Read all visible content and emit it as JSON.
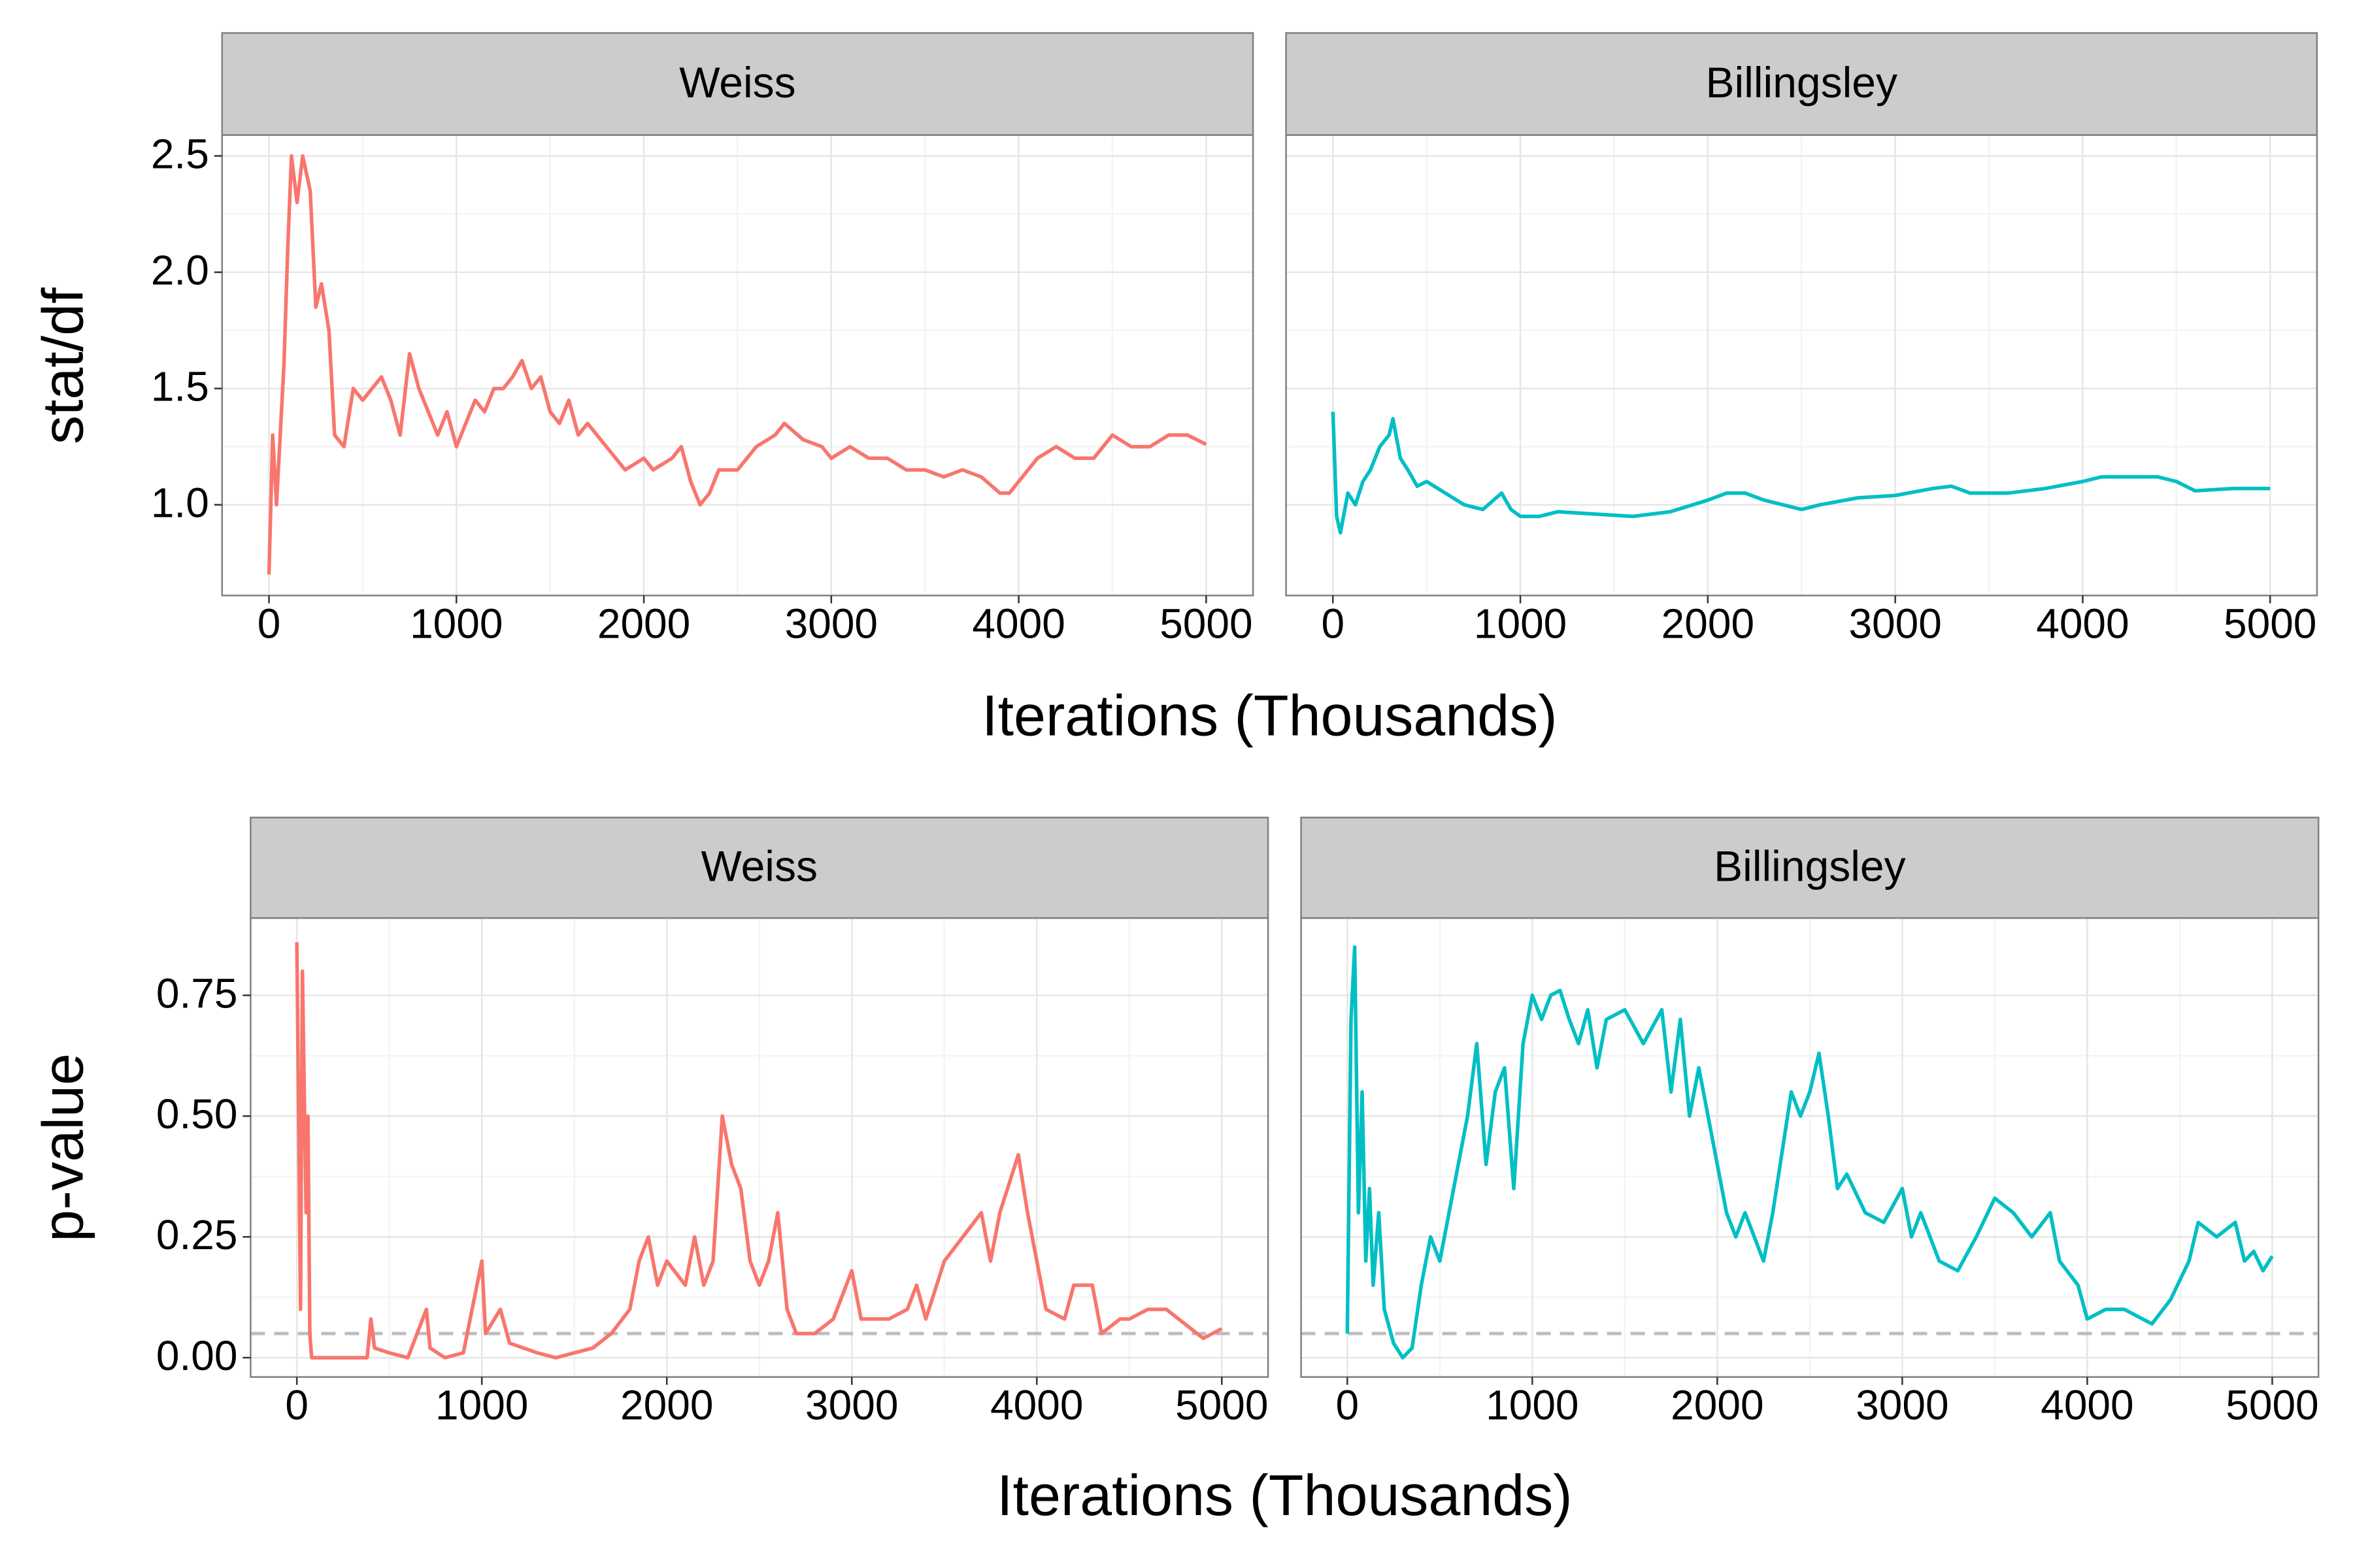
{
  "chart_data": [
    {
      "type": "line",
      "x_label": "Iterations (Thousands)",
      "y_label": "stat/df",
      "xlim": [
        -250,
        5250
      ],
      "xticks": [
        0,
        1000,
        2000,
        3000,
        4000,
        5000
      ],
      "ylim": [
        0.61,
        2.59
      ],
      "yticks": [
        {
          "value": 1.0,
          "label": "1.0"
        },
        1.5,
        {
          "value": 2.0,
          "label": "2.0"
        },
        2.5
      ],
      "grid": true,
      "series": [
        {
          "name": "Weiss",
          "color": "#F8766D",
          "x": [
            0,
            20,
            40,
            60,
            80,
            100,
            120,
            150,
            180,
            220,
            250,
            280,
            320,
            350,
            400,
            450,
            500,
            550,
            600,
            650,
            700,
            750,
            800,
            850,
            900,
            950,
            1000,
            1050,
            1100,
            1150,
            1200,
            1250,
            1300,
            1350,
            1400,
            1450,
            1500,
            1550,
            1600,
            1650,
            1700,
            1800,
            1850,
            1900,
            2000,
            2050,
            2150,
            2200,
            2250,
            2300,
            2350,
            2400,
            2500,
            2600,
            2700,
            2750,
            2850,
            2950,
            3000,
            3100,
            3200,
            3300,
            3400,
            3500,
            3600,
            3700,
            3800,
            3900,
            3950,
            4000,
            4100,
            4200,
            4300,
            4400,
            4500,
            4600,
            4700,
            4800,
            4900,
            5000
          ],
          "values": [
            0.7,
            1.3,
            1.0,
            1.3,
            1.6,
            2.1,
            2.5,
            2.3,
            2.5,
            2.35,
            1.85,
            1.95,
            1.75,
            1.3,
            1.25,
            1.5,
            1.45,
            1.5,
            1.55,
            1.45,
            1.3,
            1.65,
            1.5,
            1.4,
            1.3,
            1.4,
            1.25,
            1.35,
            1.45,
            1.4,
            1.5,
            1.5,
            1.55,
            1.62,
            1.5,
            1.55,
            1.4,
            1.35,
            1.45,
            1.3,
            1.35,
            1.25,
            1.2,
            1.15,
            1.2,
            1.15,
            1.2,
            1.25,
            1.1,
            1.0,
            1.05,
            1.15,
            1.15,
            1.25,
            1.3,
            1.35,
            1.28,
            1.25,
            1.2,
            1.25,
            1.2,
            1.2,
            1.15,
            1.15,
            1.12,
            1.15,
            1.12,
            1.05,
            1.05,
            1.1,
            1.2,
            1.25,
            1.2,
            1.2,
            1.3,
            1.25,
            1.25,
            1.3,
            1.3,
            1.26
          ]
        },
        {
          "name": "Billingsley",
          "color": "#00BFC4",
          "x": [
            0,
            20,
            40,
            80,
            120,
            160,
            200,
            250,
            300,
            320,
            360,
            400,
            450,
            500,
            600,
            700,
            800,
            900,
            950,
            1000,
            1100,
            1200,
            1400,
            1600,
            1800,
            2000,
            2100,
            2200,
            2300,
            2400,
            2500,
            2600,
            2800,
            3000,
            3200,
            3300,
            3400,
            3600,
            3800,
            4000,
            4100,
            4300,
            4400,
            4500,
            4600,
            4800,
            5000
          ],
          "values": [
            1.4,
            0.95,
            0.88,
            1.05,
            1.0,
            1.1,
            1.15,
            1.25,
            1.3,
            1.37,
            1.2,
            1.15,
            1.08,
            1.1,
            1.05,
            1.0,
            0.98,
            1.05,
            0.98,
            0.95,
            0.95,
            0.97,
            0.96,
            0.95,
            0.97,
            1.02,
            1.05,
            1.05,
            1.02,
            1.0,
            0.98,
            1.0,
            1.03,
            1.04,
            1.07,
            1.08,
            1.05,
            1.05,
            1.07,
            1.1,
            1.12,
            1.12,
            1.12,
            1.1,
            1.06,
            1.07,
            1.07
          ]
        }
      ]
    },
    {
      "type": "line",
      "x_label": "Iterations (Thousands)",
      "y_label": "p-value",
      "xlim": [
        -250,
        5250
      ],
      "xticks": [
        0,
        1000,
        2000,
        3000,
        4000,
        5000
      ],
      "ylim": [
        -0.04,
        0.91
      ],
      "yticks": [
        {
          "value": 0,
          "label": "0.00"
        },
        0.25,
        {
          "value": 0.5,
          "label": "0.50"
        },
        0.75
      ],
      "grid": true,
      "hline": 0.05,
      "hline_color": "#bdbdbd",
      "series": [
        {
          "name": "Weiss",
          "color": "#F8766D",
          "x": [
            0,
            20,
            30,
            50,
            60,
            70,
            80,
            200,
            380,
            400,
            420,
            500,
            600,
            700,
            720,
            800,
            900,
            1000,
            1020,
            1100,
            1150,
            1300,
            1400,
            1500,
            1600,
            1700,
            1800,
            1850,
            1900,
            1950,
            2000,
            2100,
            2150,
            2200,
            2250,
            2300,
            2350,
            2400,
            2450,
            2500,
            2550,
            2600,
            2650,
            2700,
            2800,
            2900,
            3000,
            3050,
            3200,
            3300,
            3350,
            3400,
            3500,
            3600,
            3700,
            3750,
            3800,
            3900,
            3950,
            4000,
            4050,
            4150,
            4200,
            4300,
            4350,
            4450,
            4500,
            4600,
            4700,
            4800,
            4900,
            5000
          ],
          "values": [
            0.86,
            0.1,
            0.8,
            0.3,
            0.5,
            0.05,
            0.0,
            0.0,
            0.0,
            0.08,
            0.02,
            0.01,
            0.0,
            0.1,
            0.02,
            0.0,
            0.01,
            0.2,
            0.05,
            0.1,
            0.03,
            0.01,
            0.0,
            0.01,
            0.02,
            0.05,
            0.1,
            0.2,
            0.25,
            0.15,
            0.2,
            0.15,
            0.25,
            0.15,
            0.2,
            0.5,
            0.4,
            0.35,
            0.2,
            0.15,
            0.2,
            0.3,
            0.1,
            0.05,
            0.05,
            0.08,
            0.18,
            0.08,
            0.08,
            0.1,
            0.15,
            0.08,
            0.2,
            0.25,
            0.3,
            0.2,
            0.3,
            0.42,
            0.3,
            0.2,
            0.1,
            0.08,
            0.15,
            0.15,
            0.05,
            0.08,
            0.08,
            0.1,
            0.1,
            0.07,
            0.04,
            0.06
          ]
        },
        {
          "name": "Billingsley",
          "color": "#00BFC4",
          "x": [
            0,
            20,
            40,
            60,
            80,
            100,
            120,
            140,
            170,
            200,
            250,
            300,
            350,
            400,
            450,
            500,
            550,
            600,
            650,
            700,
            750,
            800,
            850,
            900,
            950,
            1000,
            1050,
            1100,
            1150,
            1200,
            1250,
            1300,
            1350,
            1400,
            1500,
            1600,
            1700,
            1750,
            1800,
            1850,
            1900,
            2000,
            2050,
            2100,
            2150,
            2200,
            2250,
            2300,
            2400,
            2450,
            2500,
            2550,
            2600,
            2650,
            2700,
            2800,
            2900,
            3000,
            3050,
            3100,
            3200,
            3300,
            3400,
            3500,
            3600,
            3700,
            3800,
            3850,
            3950,
            4000,
            4100,
            4200,
            4300,
            4350,
            4450,
            4550,
            4600,
            4700,
            4800,
            4850,
            4900,
            4950,
            5000
          ],
          "values": [
            0.05,
            0.7,
            0.85,
            0.3,
            0.55,
            0.2,
            0.35,
            0.15,
            0.3,
            0.1,
            0.03,
            0.0,
            0.02,
            0.15,
            0.25,
            0.2,
            0.3,
            0.4,
            0.5,
            0.65,
            0.4,
            0.55,
            0.6,
            0.35,
            0.65,
            0.75,
            0.7,
            0.75,
            0.76,
            0.7,
            0.65,
            0.72,
            0.6,
            0.7,
            0.72,
            0.65,
            0.72,
            0.55,
            0.7,
            0.5,
            0.6,
            0.4,
            0.3,
            0.25,
            0.3,
            0.25,
            0.2,
            0.3,
            0.55,
            0.5,
            0.55,
            0.63,
            0.5,
            0.35,
            0.38,
            0.3,
            0.28,
            0.35,
            0.25,
            0.3,
            0.2,
            0.18,
            0.25,
            0.33,
            0.3,
            0.25,
            0.3,
            0.2,
            0.15,
            0.08,
            0.1,
            0.1,
            0.08,
            0.07,
            0.12,
            0.2,
            0.28,
            0.25,
            0.28,
            0.2,
            0.22,
            0.18,
            0.21
          ]
        }
      ]
    }
  ]
}
